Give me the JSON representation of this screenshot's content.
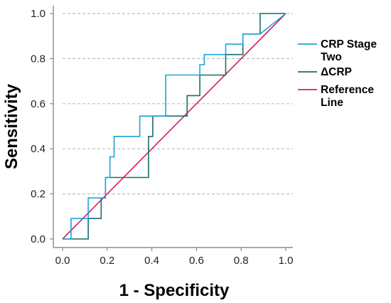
{
  "chart_data": {
    "type": "line",
    "xlabel": "1 - Specificity",
    "ylabel": "Sensitivity",
    "xlim": [
      0,
      1
    ],
    "ylim": [
      0,
      1
    ],
    "xticks": [
      "0.0",
      "0.2",
      "0.4",
      "0.6",
      "0.8",
      "1.0"
    ],
    "yticks": [
      "0.0",
      "0.2",
      "0.4",
      "0.6",
      "0.8",
      "1.0"
    ],
    "grid": "horizontal-dashed",
    "legend_position": "right",
    "series": [
      {
        "name": "CRP Stage Two",
        "color": "#1aa4dc",
        "x": [
          0,
          0.038,
          0.038,
          0.115,
          0.115,
          0.192,
          0.192,
          0.212,
          0.212,
          0.231,
          0.231,
          0.346,
          0.346,
          0.462,
          0.462,
          0.615,
          0.615,
          0.635,
          0.635,
          0.731,
          0.731,
          0.808,
          0.808,
          0.885,
          1.0
        ],
        "y": [
          0,
          0,
          0.091,
          0.091,
          0.182,
          0.182,
          0.273,
          0.273,
          0.364,
          0.364,
          0.455,
          0.455,
          0.545,
          0.545,
          0.727,
          0.727,
          0.773,
          0.773,
          0.818,
          0.818,
          0.864,
          0.864,
          0.909,
          0.909,
          1.0
        ]
      },
      {
        "name": "ΔCRP",
        "color": "#1a6e6a",
        "x": [
          0,
          0.115,
          0.115,
          0.173,
          0.173,
          0.192,
          0.192,
          0.385,
          0.385,
          0.404,
          0.404,
          0.558,
          0.558,
          0.615,
          0.615,
          0.731,
          0.731,
          0.808,
          0.808,
          0.885,
          0.885,
          1.0
        ],
        "y": [
          0,
          0,
          0.091,
          0.091,
          0.182,
          0.182,
          0.273,
          0.273,
          0.455,
          0.455,
          0.545,
          0.545,
          0.636,
          0.636,
          0.727,
          0.727,
          0.818,
          0.818,
          0.909,
          0.909,
          1.0,
          1.0
        ]
      },
      {
        "name": "Reference Line",
        "color": "#d81b60",
        "x": [
          0,
          1
        ],
        "y": [
          0,
          1
        ]
      }
    ]
  },
  "legend": {
    "items": [
      {
        "lines": [
          "CRP Stage",
          "Two"
        ],
        "color": "#1aa4dc"
      },
      {
        "lines": [
          "ΔCRP"
        ],
        "color": "#1a6e6a"
      },
      {
        "lines": [
          "Reference",
          "Line"
        ],
        "color": "#d81b60"
      }
    ]
  },
  "colors": {
    "axis": "#777777",
    "grid": "#bdbdbd"
  }
}
